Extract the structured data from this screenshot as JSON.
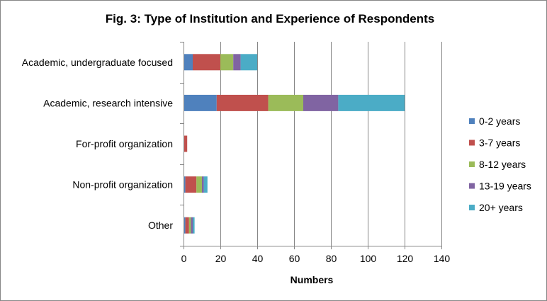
{
  "chart_data": {
    "type": "bar",
    "orientation": "horizontal",
    "stacked": true,
    "title": "Fig. 3: Type of Institution and Experience of Respondents",
    "xlabel": "Numbers",
    "ylabel": "",
    "xlim": [
      0,
      140
    ],
    "x_ticks": [
      0,
      20,
      40,
      60,
      80,
      100,
      120,
      140
    ],
    "grid": "vertical",
    "legend_position": "right",
    "categories": [
      "Academic, undergraduate focused",
      "Academic, research intensive",
      "For-profit organization",
      "Non-profit organization",
      "Other"
    ],
    "series": [
      {
        "name": "0-2 years",
        "color": "#4F81BD",
        "values": [
          5,
          18,
          0,
          1,
          1
        ]
      },
      {
        "name": "3-7 years",
        "color": "#C0504D",
        "values": [
          15,
          28,
          2,
          6,
          2
        ]
      },
      {
        "name": "8-12 years",
        "color": "#9BBB59",
        "values": [
          7,
          19,
          0,
          3,
          1
        ]
      },
      {
        "name": "13-19 years",
        "color": "#8064A2",
        "values": [
          4,
          19,
          0,
          1,
          1
        ]
      },
      {
        "name": "20+ years",
        "color": "#4BACC6",
        "values": [
          9,
          36,
          0,
          2,
          1
        ]
      }
    ]
  },
  "colors": {
    "grid": "#868686",
    "frame": "#868686"
  }
}
